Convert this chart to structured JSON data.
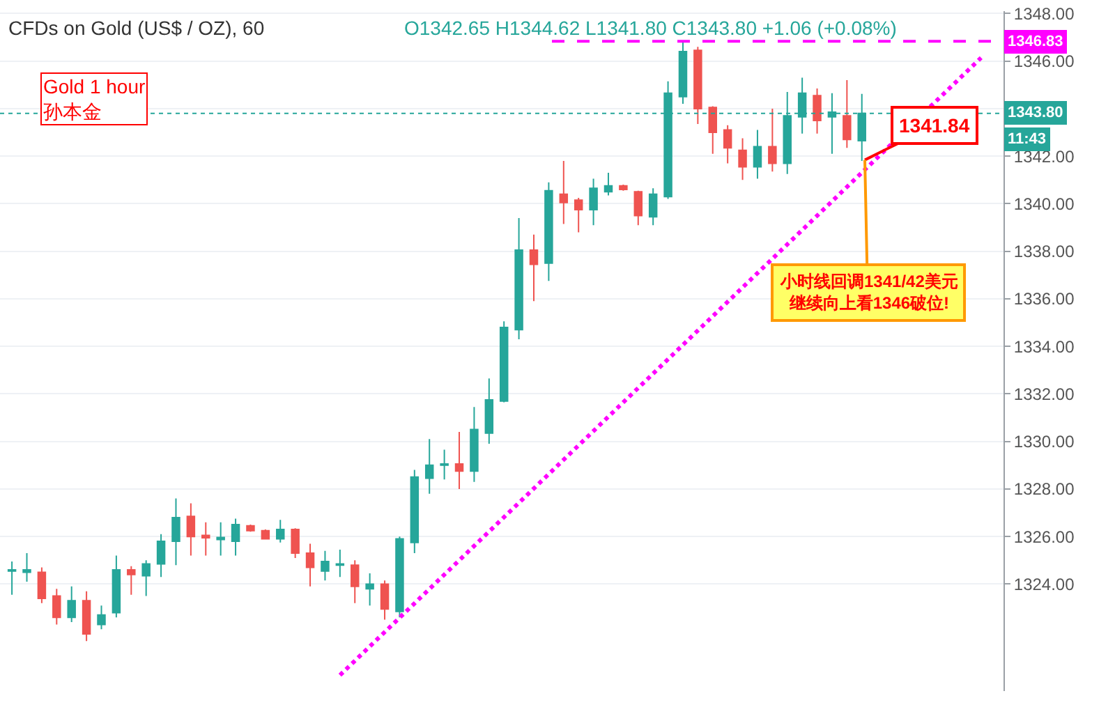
{
  "chart_data": {
    "type": "candlestick",
    "title": "CFDs on Gold (US$ / OZ), 60",
    "subtitle": "O1342.65 H1344.62 L1341.80 C1343.80 +1.06 (+0.08%)",
    "categories": [
      null,
      null,
      null,
      null,
      null,
      null,
      null,
      null,
      null,
      null,
      null,
      null,
      null,
      null,
      null,
      null,
      null,
      null,
      null,
      null,
      null,
      null,
      null,
      null,
      null,
      null,
      null,
      null,
      null,
      null,
      null,
      null,
      null,
      null,
      null,
      null,
      null,
      null,
      null,
      null,
      null,
      null,
      null,
      null,
      null,
      null,
      null,
      null,
      null,
      null,
      null,
      null,
      null,
      null,
      null,
      null,
      null,
      null,
      null,
      null,
      null,
      null,
      null,
      null,
      null,
      null,
      null
    ],
    "ohlc": [
      [
        1324.55,
        1324.95,
        1323.55,
        1324.6
      ],
      [
        1324.5,
        1325.3,
        1324.1,
        1324.6
      ],
      [
        1324.5,
        1324.7,
        1323.2,
        1323.4
      ],
      [
        1323.5,
        1323.8,
        1322.3,
        1322.6
      ],
      [
        1322.6,
        1323.9,
        1322.4,
        1323.3
      ],
      [
        1323.3,
        1323.7,
        1321.6,
        1321.9
      ],
      [
        1322.3,
        1323.1,
        1322.1,
        1322.7
      ],
      [
        1322.8,
        1325.2,
        1322.6,
        1324.6
      ],
      [
        1324.6,
        1324.75,
        1323.55,
        1324.4
      ],
      [
        1324.35,
        1325.0,
        1323.5,
        1324.85
      ],
      [
        1324.85,
        1326.1,
        1324.3,
        1325.8
      ],
      [
        1325.8,
        1327.6,
        1324.8,
        1326.8
      ],
      [
        1326.85,
        1327.4,
        1325.2,
        1326.0
      ],
      [
        1326.05,
        1326.6,
        1325.2,
        1325.95
      ],
      [
        1325.87,
        1326.6,
        1325.2,
        1325.96
      ],
      [
        1325.8,
        1326.75,
        1325.2,
        1326.5
      ],
      [
        1326.45,
        1326.5,
        1326.2,
        1326.25
      ],
      [
        1326.25,
        1326.3,
        1325.9,
        1325.9
      ],
      [
        1325.9,
        1326.7,
        1325.75,
        1326.3
      ],
      [
        1326.3,
        1326.35,
        1325.1,
        1325.3
      ],
      [
        1325.3,
        1325.7,
        1323.9,
        1324.7
      ],
      [
        1324.55,
        1325.4,
        1324.15,
        1324.95
      ],
      [
        1324.8,
        1325.45,
        1324.3,
        1324.85
      ],
      [
        1324.8,
        1325.0,
        1323.2,
        1323.9
      ],
      [
        1323.8,
        1324.45,
        1323.1,
        1324.0
      ],
      [
        1324.0,
        1324.15,
        1322.5,
        1322.95
      ],
      [
        1322.85,
        1326.0,
        1322.6,
        1325.9
      ],
      [
        1325.75,
        1328.8,
        1325.3,
        1328.5
      ],
      [
        1328.45,
        1330.1,
        1327.8,
        1329.0
      ],
      [
        1329.0,
        1329.65,
        1328.4,
        1329.05
      ],
      [
        1329.05,
        1330.4,
        1328.0,
        1328.75
      ],
      [
        1328.75,
        1331.45,
        1328.3,
        1330.5
      ],
      [
        1330.35,
        1332.65,
        1329.9,
        1331.75
      ],
      [
        1331.7,
        1335.05,
        1331.65,
        1334.8
      ],
      [
        1334.7,
        1339.4,
        1334.3,
        1338.05
      ],
      [
        1338.05,
        1338.7,
        1335.9,
        1337.45
      ],
      [
        1337.5,
        1340.9,
        1336.75,
        1340.55
      ],
      [
        1340.4,
        1341.8,
        1339.15,
        1340.05
      ],
      [
        1340.15,
        1340.25,
        1338.8,
        1339.75
      ],
      [
        1339.75,
        1341.05,
        1339.1,
        1340.65
      ],
      [
        1340.5,
        1341.3,
        1340.35,
        1340.75
      ],
      [
        1340.75,
        1340.8,
        1340.55,
        1340.6
      ],
      [
        1340.5,
        1340.55,
        1339.1,
        1339.5
      ],
      [
        1339.45,
        1340.65,
        1339.1,
        1340.4
      ],
      [
        1340.3,
        1345.15,
        1340.2,
        1344.65
      ],
      [
        1344.5,
        1346.83,
        1344.2,
        1346.4
      ],
      [
        1346.45,
        1346.6,
        1343.35,
        1344.0
      ],
      [
        1344.05,
        1344.1,
        1342.1,
        1343.0
      ],
      [
        1343.1,
        1343.3,
        1341.7,
        1342.35
      ],
      [
        1342.25,
        1342.75,
        1341.0,
        1341.55
      ],
      [
        1341.55,
        1343.1,
        1341.05,
        1342.4
      ],
      [
        1342.4,
        1344.0,
        1341.35,
        1341.7
      ],
      [
        1341.7,
        1344.7,
        1341.25,
        1343.7
      ],
      [
        1343.65,
        1345.3,
        1342.95,
        1344.65
      ],
      [
        1344.55,
        1344.85,
        1342.95,
        1343.5
      ],
      [
        1343.65,
        1344.65,
        1342.1,
        1343.85
      ],
      [
        1343.7,
        1345.2,
        1342.35,
        1342.7
      ],
      [
        1342.65,
        1344.62,
        1341.8,
        1343.8
      ],
      null,
      null,
      null,
      null,
      null,
      null,
      null,
      null,
      null
    ],
    "colors": [
      "#26a69a",
      "#26a69a",
      "#ef5350",
      "#ef5350",
      "#26a69a",
      "#ef5350",
      "#26a69a",
      "#26a69a",
      "#ef5350",
      "#26a69a",
      "#26a69a",
      "#26a69a",
      "#ef5350",
      "#ef5350",
      "#26a69a",
      "#26a69a",
      "#ef5350",
      "#ef5350",
      "#26a69a",
      "#ef5350",
      "#ef5350",
      "#26a69a",
      "#26a69a",
      "#ef5350",
      "#26a69a",
      "#ef5350",
      "#26a69a",
      "#26a69a",
      "#26a69a",
      "#26a69a",
      "#ef5350",
      "#26a69a",
      "#26a69a",
      "#26a69a",
      "#26a69a",
      "#ef5350",
      "#26a69a",
      "#ef5350",
      "#ef5350",
      "#26a69a",
      "#26a69a",
      "#ef5350",
      "#ef5350",
      "#26a69a",
      "#26a69a",
      "#26a69a",
      "#ef5350",
      "#ef5350",
      "#ef5350",
      "#ef5350",
      "#26a69a",
      "#ef5350",
      "#26a69a",
      "#26a69a",
      "#ef5350",
      "#26a69a",
      "#ef5350",
      "#26a69a",
      null,
      null,
      null,
      null,
      null,
      null,
      null,
      null,
      null
    ],
    "series": [
      {
        "type": "line",
        "color": "#ff00ff",
        "line_style": "dotted",
        "values": [
          null,
          null,
          null,
          null,
          null,
          null,
          null,
          null,
          null,
          null,
          null,
          null,
          null,
          null,
          null,
          null,
          null,
          null,
          null,
          null,
          null,
          null,
          1320.17,
          null,
          null,
          null,
          null,
          null,
          null,
          null,
          null,
          null,
          null,
          null,
          null,
          null,
          null,
          null,
          null,
          null,
          null,
          null,
          null,
          null,
          null,
          null,
          null,
          null,
          null,
          null,
          null,
          null,
          null,
          null,
          null,
          null,
          null,
          null,
          null,
          null,
          null,
          null,
          null,
          null,
          null,
          1346.14,
          null
        ]
      }
    ],
    "ylim": [
      1319.5,
      1348.1
    ],
    "yticks": [
      {
        "value": 1324,
        "label": "1324.00"
      },
      {
        "value": 1326,
        "label": "1326.00"
      },
      {
        "value": 1328,
        "label": "1328.00"
      },
      {
        "value": 1330,
        "label": "1330.00"
      },
      {
        "value": 1332,
        "label": "1332.00"
      },
      {
        "value": 1334,
        "label": "1334.00"
      },
      {
        "value": 1336,
        "label": "1336.00"
      },
      {
        "value": 1338,
        "label": "1338.00"
      },
      {
        "value": 1340,
        "label": "1340.00"
      },
      {
        "value": 1342,
        "label": "1342.00"
      },
      {
        "value": 1344,
        "label": null
      },
      {
        "value": 1346,
        "label": "1346.00"
      },
      {
        "value": 1348,
        "label": "1348.00"
      }
    ],
    "tick_labels": "y",
    "grid": "y",
    "ref_lines": [
      {
        "axis": "y",
        "value": 1346.83,
        "label": "1346.83",
        "color": "#ff00ff",
        "line_style": "dashed"
      },
      {
        "axis": "y",
        "value": 1343.8,
        "label": "1343.80",
        "color": "#26a69a",
        "line_style": "dotted"
      }
    ],
    "annotations": [
      "Gold 1 hour\n孙本金",
      "1341.84",
      "小时线回调1341/42美元",
      "继续向上看1346破位!",
      "11:43"
    ]
  }
}
